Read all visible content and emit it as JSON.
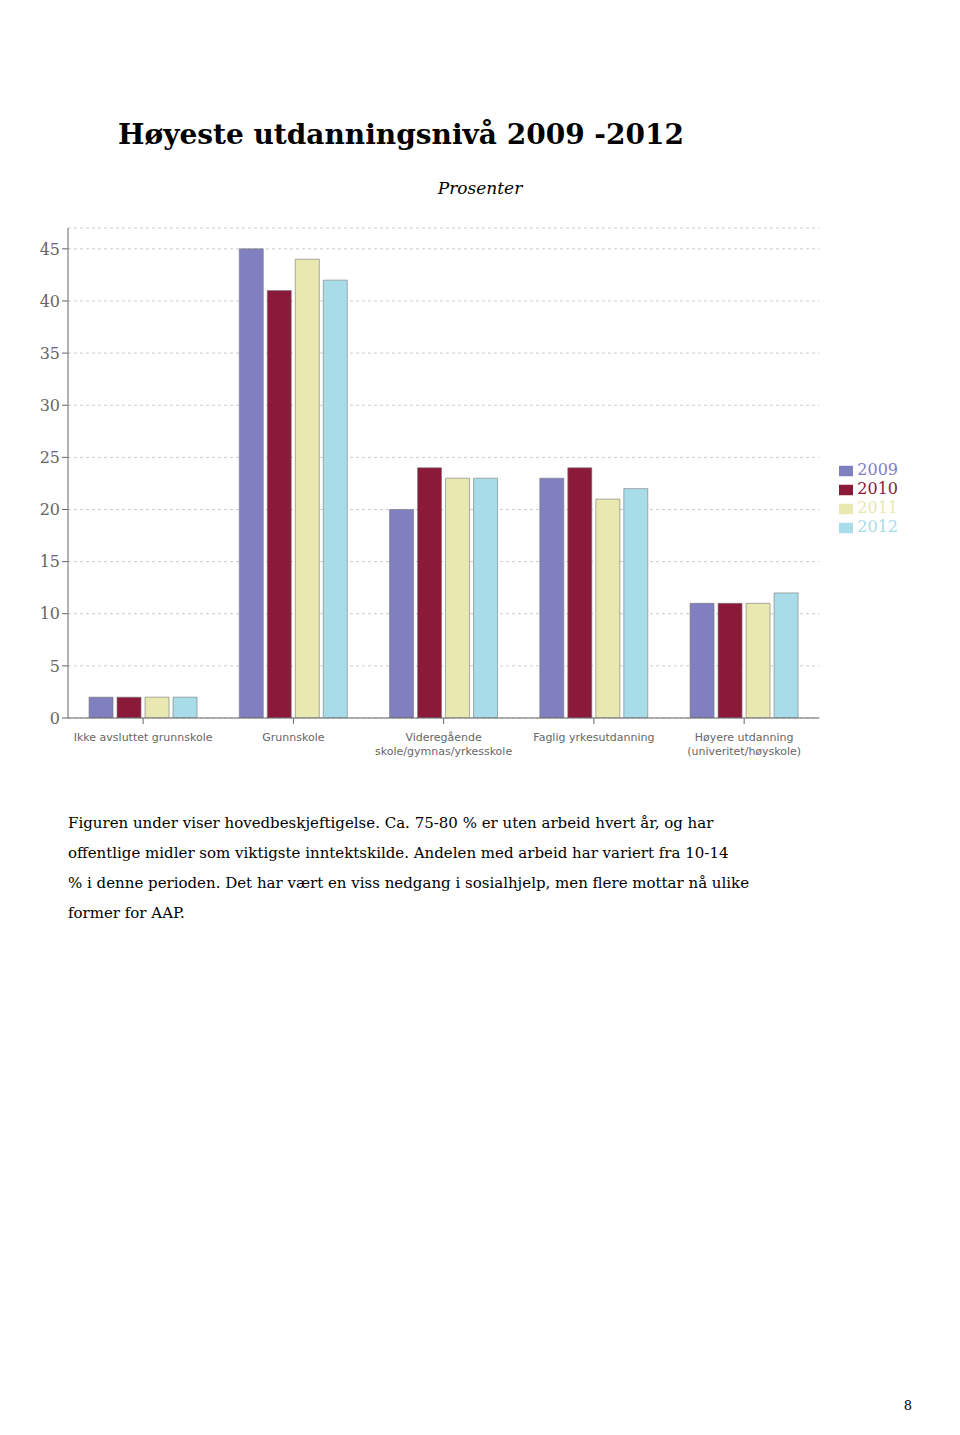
{
  "chart_data": {
    "type": "bar",
    "title": "Høyeste utdanningsnivå 2009 -2012",
    "subtitle": "Prosenter",
    "categories": [
      "Ikke avsluttet grunnskole",
      "Grunnskole",
      "Videregående\nskole/gymnas/yrkesskole",
      "Faglig yrkesutdanning",
      "Høyere utdanning\n(univeritet/høyskole)"
    ],
    "series": [
      {
        "name": "2009",
        "color": "#8080c0",
        "values": [
          2,
          45,
          20,
          23,
          11
        ]
      },
      {
        "name": "2010",
        "color": "#8b1a3a",
        "values": [
          2,
          41,
          24,
          24,
          11
        ]
      },
      {
        "name": "2011",
        "color": "#e8e8b0",
        "values": [
          2,
          44,
          23,
          21,
          11
        ]
      },
      {
        "name": "2012",
        "color": "#a8dce8",
        "values": [
          2,
          42,
          23,
          22,
          12
        ]
      }
    ],
    "ylim": [
      0,
      47
    ],
    "yticks": [
      0,
      5,
      10,
      15,
      20,
      25,
      30,
      35,
      40,
      45
    ],
    "grid": true,
    "legend": "right",
    "annotations": [
      "Figuren under viser hovedbeskjeftigelse. Ca. 75-80 % er uten arbeid hvert år, og har",
      "offentlige midler som viktigste inntektskilde. Andelen med arbeid har variert fra 10-14",
      "% i denne perioden. Det har vært en viss nedgang i sosialhjelp, men flere mottar nå ulike",
      "former for AAP.",
      "8"
    ]
  }
}
